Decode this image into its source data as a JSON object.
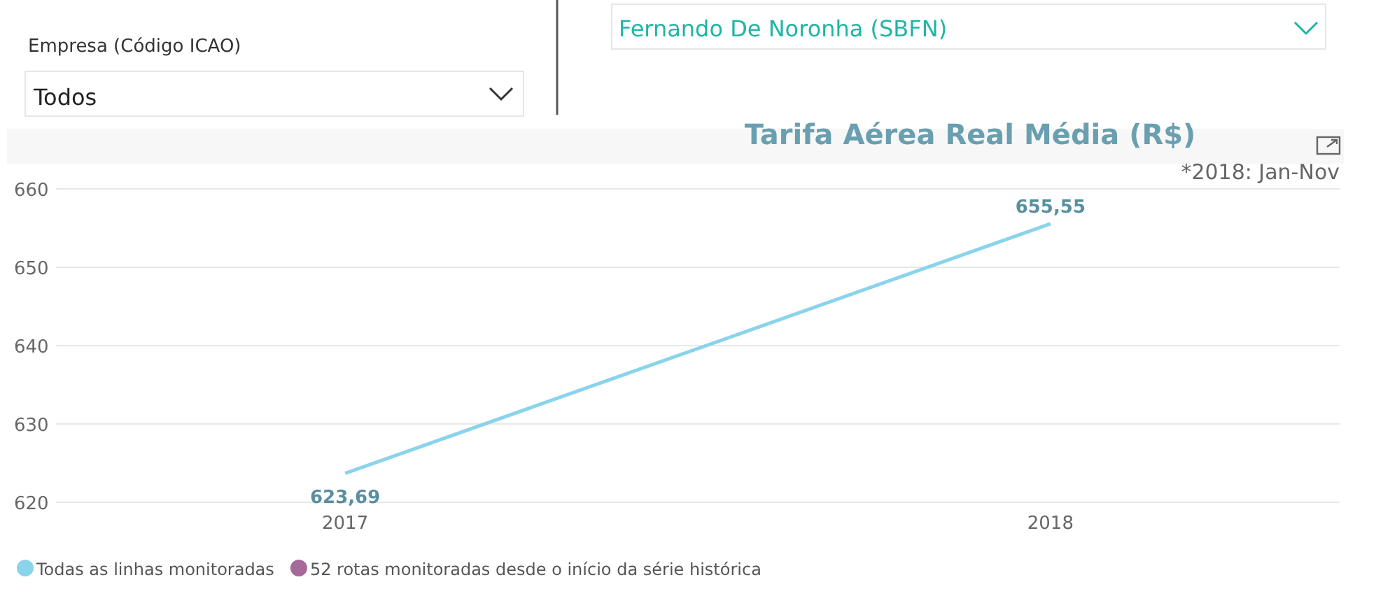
{
  "chart_data": {
    "type": "line",
    "title": "Tarifa Aérea Real Média (R$)",
    "categories": [
      "2017",
      "2018"
    ],
    "series": [
      {
        "name": "Todas as linhas monitoradas",
        "color": "#8ad4eb",
        "values": [
          623.69,
          655.55
        ],
        "value_labels": [
          "623,69",
          "655,55"
        ]
      },
      {
        "name": "52 rotas monitoradas desde o início da série histórica",
        "color": "#a66999",
        "values": [
          null,
          null
        ]
      }
    ],
    "ylim": [
      620,
      660
    ],
    "yticks": [
      620,
      630,
      640,
      650,
      660
    ],
    "grid": "y",
    "legend": "bottom left",
    "marker": "none",
    "line_style": "solid",
    "annotations": [
      "*2018: Jan-Nov",
      "Empresa (Código ICAO)",
      "Todos",
      "Fernando De Noronha (SBFN)"
    ]
  }
}
